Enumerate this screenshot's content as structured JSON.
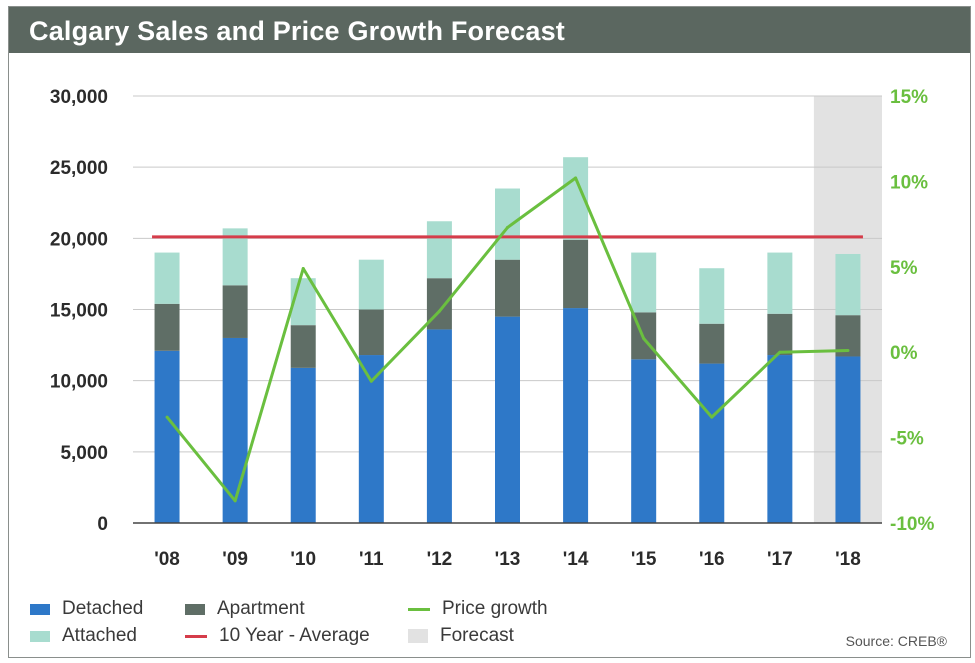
{
  "chart_data": {
    "type": "bar",
    "title": "Calgary Sales and Price Growth Forecast",
    "categories": [
      "'08",
      "'09",
      "'10",
      "'11",
      "'12",
      "'13",
      "'14",
      "'15",
      "'16",
      "'17",
      "'18"
    ],
    "series": [
      {
        "name": "Detached",
        "type": "stacked-bar",
        "color": "#2e78c8",
        "values": [
          12100,
          13000,
          10900,
          11800,
          13600,
          14500,
          15100,
          11500,
          11200,
          11800,
          11700
        ]
      },
      {
        "name": "Apartment",
        "type": "stacked-bar",
        "color": "#5f6e66",
        "values": [
          3300,
          3700,
          3000,
          3200,
          3600,
          4000,
          4800,
          3300,
          2800,
          2900,
          2900
        ]
      },
      {
        "name": "Attached",
        "type": "stacked-bar",
        "color": "#a8dccf",
        "values": [
          3600,
          4000,
          3300,
          3500,
          4000,
          5000,
          5800,
          4200,
          3900,
          4300,
          4300
        ]
      },
      {
        "name": "Price growth",
        "type": "line",
        "axis": "right",
        "color": "#6abf3f",
        "values": [
          -3.8,
          -8.7,
          4.9,
          -1.7,
          2.4,
          7.3,
          10.2,
          0.8,
          -3.8,
          0.0,
          0.1
        ]
      },
      {
        "name": "10 Year - Average",
        "type": "line",
        "color": "#d53c4a",
        "values": [
          20100,
          20100,
          20100,
          20100,
          20100,
          20100,
          20100,
          20100,
          20100,
          20100,
          20100
        ]
      }
    ],
    "forecast_category": "'18",
    "forecast_label": "Forecast",
    "forecast_color": "#e2e2e2",
    "ylim": [
      0,
      30000
    ],
    "y2lim": [
      -10,
      15
    ],
    "yticks": [
      "0",
      "5,000",
      "10,000",
      "15,000",
      "20,000",
      "25,000",
      "30,000"
    ],
    "y2ticks": [
      "-10%",
      "-5%",
      "0%",
      "5%",
      "10%",
      "15%"
    ],
    "grid": true,
    "legend_position": "bottom",
    "source": "Source: CREB®"
  }
}
